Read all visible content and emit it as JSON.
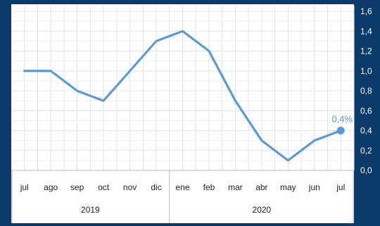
{
  "chart_data": {
    "type": "line",
    "categories": [
      "jul",
      "ago",
      "sep",
      "oct",
      "nov",
      "dic",
      "ene",
      "feb",
      "mar",
      "abr",
      "may",
      "jun",
      "jul"
    ],
    "groups": [
      {
        "label": "2019",
        "start": 0,
        "end": 5
      },
      {
        "label": "2020",
        "start": 6,
        "end": 12
      }
    ],
    "series": [
      {
        "values": [
          1.0,
          1.0,
          0.8,
          0.7,
          1.0,
          1.3,
          1.4,
          1.2,
          0.7,
          0.3,
          0.1,
          0.3,
          0.4
        ]
      }
    ],
    "yticks": [
      "0,0",
      "0,2",
      "0,4",
      "0,6",
      "0,8",
      "1,0",
      "1,2",
      "1,4",
      "1,6"
    ],
    "ylim": [
      0,
      1.6
    ],
    "grid": true,
    "last_point_label": "0,4%",
    "colors": {
      "background": "#0b3a6b",
      "plot": "#ffffff",
      "line": "#5b9bd5",
      "grid": "#e4e4e4",
      "text": "#ffffff",
      "axis_text": "#222222"
    }
  }
}
